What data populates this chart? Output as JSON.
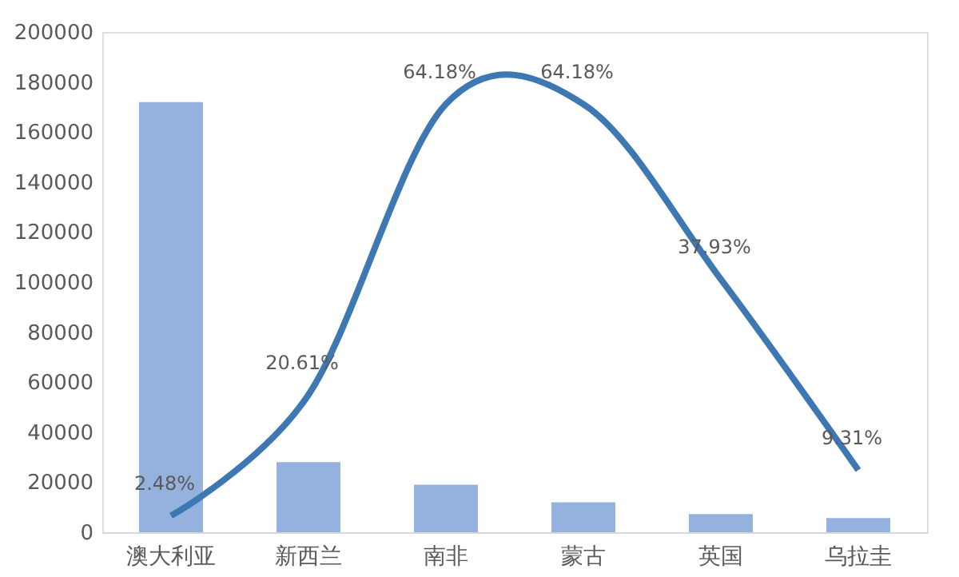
{
  "chart_data": {
    "type": "bar",
    "categories": [
      "澳大利亚",
      "新西兰",
      "南非",
      "蒙古",
      "英国",
      "乌拉圭"
    ],
    "series": [
      {
        "color": "#8eaedb",
        "values": [
          172000,
          28000,
          19000,
          12000,
          7300,
          5700
        ]
      },
      {
        "type": "line",
        "axis": "y2",
        "color": "#3e78b2",
        "values": [
          2.48,
          20.61,
          64.18,
          64.18,
          37.93,
          9.31
        ],
        "value_labels": [
          "2.48%",
          "20.61%",
          "64.18%",
          "64.18%",
          "37.93%",
          "9.31%"
        ]
      }
    ],
    "ylim": [
      0,
      200000
    ],
    "yticks": [
      0,
      20000,
      40000,
      60000,
      80000,
      100000,
      120000,
      140000,
      160000,
      180000,
      200000
    ],
    "y2lim": [
      0,
      75
    ],
    "tick_labels": "xy",
    "grid": false
  }
}
